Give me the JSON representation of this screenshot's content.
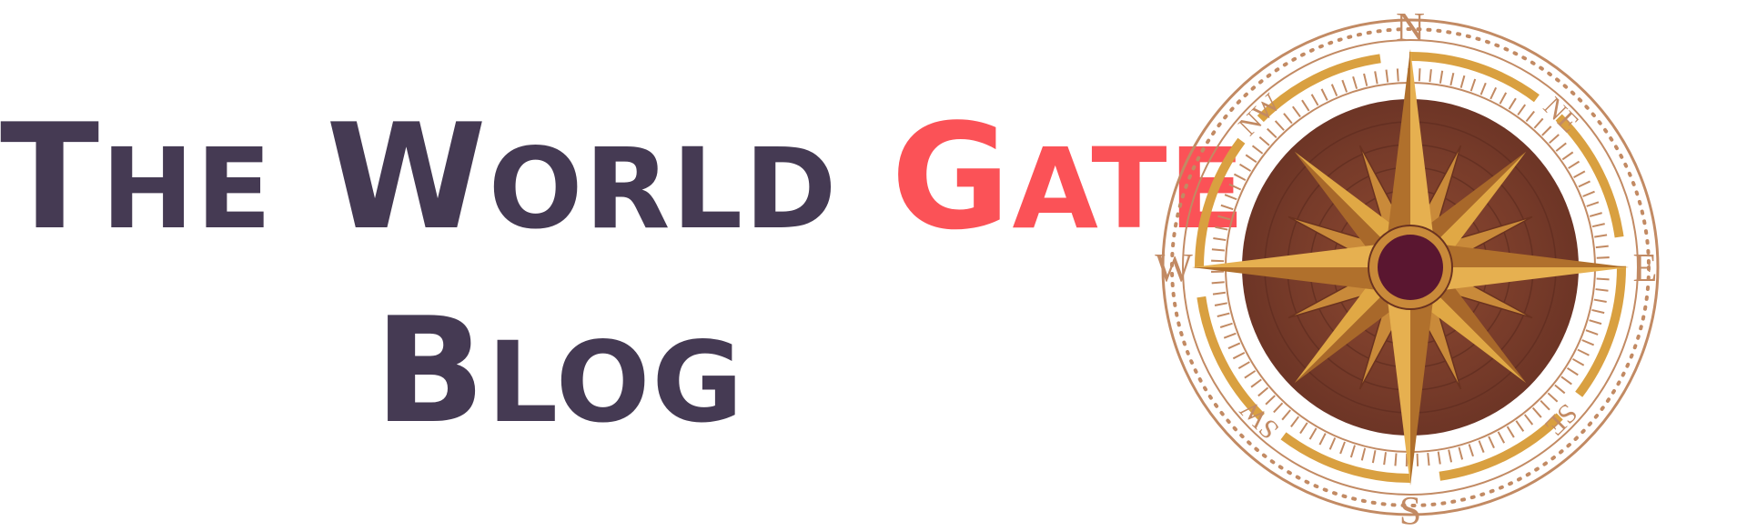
{
  "logo": {
    "line1": {
      "word1_initial": "T",
      "word1_rest": "HE",
      "word2_initial": "W",
      "word2_rest": "ORLD",
      "word3_initial": "G",
      "word3_rest": "ATE"
    },
    "line2": {
      "word_initial": "B",
      "word_rest": "LOG"
    }
  },
  "compass": {
    "directions": {
      "n": "N",
      "ne": "NE",
      "e": "E",
      "se": "SE",
      "s": "S",
      "sw": "SW",
      "w": "W",
      "nw": "NW"
    }
  },
  "colors": {
    "primary_text": "#453a53",
    "accent_text": "#fb5257",
    "compass_gold": "#d9a040",
    "compass_brown": "#7a3d2d",
    "compass_center": "#5a1630"
  }
}
